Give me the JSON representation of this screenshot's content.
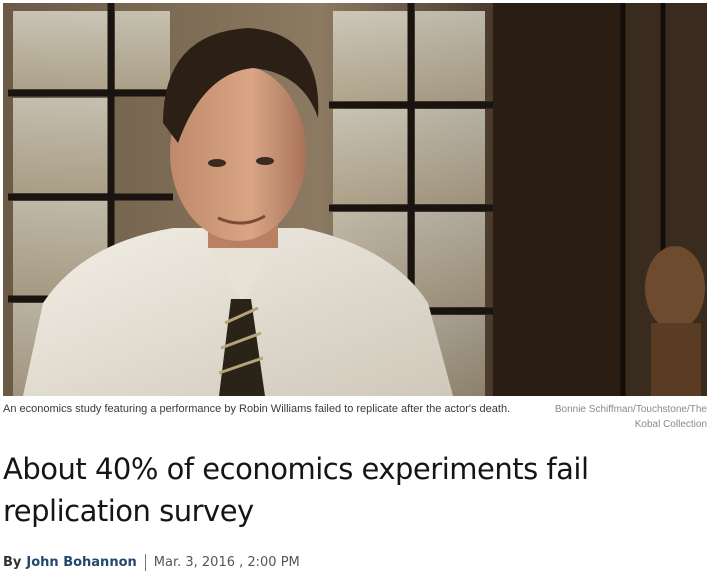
{
  "image": {
    "alt": "Robin Williams in a white shirt and striped tie standing before a leaded window"
  },
  "caption": {
    "text": "An economics study featuring a performance by Robin Williams failed to replicate after the actor's death.",
    "credit": "Bonnie Schiffman/Touchstone/The Kobal Collection"
  },
  "article": {
    "headline": "About 40% of economics experiments fail replication survey",
    "by_label": "By",
    "author": "John Bohannon",
    "date": "Mar. 3, 2016 , 2:00 PM"
  }
}
